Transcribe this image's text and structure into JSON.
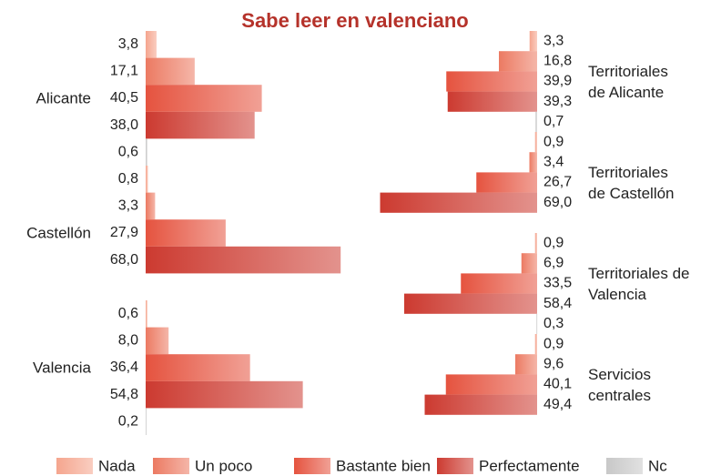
{
  "chart_data": [
    {
      "type": "bar",
      "orientation": "horizontal",
      "title": "Sabe leer en valenciano",
      "categories": [
        "Alicante",
        "Castellón",
        "Valencia"
      ],
      "xlim": [
        0,
        100
      ],
      "series": [
        {
          "name": "Nada",
          "color": "#f5a58e",
          "values": [
            3.8,
            0.8,
            0.6
          ],
          "value_labels": [
            "3,8",
            "0,8",
            "0,6"
          ]
        },
        {
          "name": "Un poco",
          "color": "#ec7a62",
          "values": [
            17.1,
            3.3,
            8.0
          ],
          "value_labels": [
            "17,1",
            "3,3",
            "8,0"
          ]
        },
        {
          "name": "Bastante bien",
          "color": "#e5533f",
          "values": [
            40.5,
            27.9,
            36.4
          ],
          "value_labels": [
            "40,5",
            "27,9",
            "36,4"
          ]
        },
        {
          "name": "Perfectamente",
          "color": "#cc3a30",
          "values": [
            38.0,
            68.0,
            54.8
          ],
          "value_labels": [
            "38,0",
            "68,0",
            "54,8"
          ]
        },
        {
          "name": "Nc",
          "color": "#c8c8c8",
          "values": [
            0.6,
            null,
            0.2
          ],
          "value_labels": [
            "0,6",
            null,
            "0,2"
          ]
        }
      ]
    },
    {
      "type": "bar",
      "orientation": "horizontal-reversed",
      "categories": [
        "Territoriales\nde Alicante",
        "Territoriales\nde Castellón",
        "Territoriales de\nValencia",
        "Servicios\ncentrales"
      ],
      "xlim": [
        0,
        100
      ],
      "series": [
        {
          "color": "#f5a58e",
          "values": [
            3.3,
            0.9,
            0.9,
            0.9
          ],
          "value_labels": [
            "3,3",
            "0,9",
            "0,9",
            "0,9"
          ]
        },
        {
          "color": "#ec7a62",
          "values": [
            16.8,
            3.4,
            6.9,
            9.6
          ],
          "value_labels": [
            "16,8",
            "3,4",
            "6,9",
            "9,6"
          ]
        },
        {
          "color": "#e5533f",
          "values": [
            39.9,
            26.7,
            33.5,
            40.1
          ],
          "value_labels": [
            "39,9",
            "26,7",
            "33,5",
            "40,1"
          ]
        },
        {
          "color": "#cc3a30",
          "values": [
            39.3,
            69.0,
            58.4,
            49.4
          ],
          "value_labels": [
            "39,3",
            "69,0",
            "58,4",
            "49,4"
          ]
        },
        {
          "color": "#c8c8c8",
          "values": [
            0.7,
            null,
            0.3,
            null
          ],
          "value_labels": [
            "0,7",
            null,
            "0,3",
            null
          ]
        }
      ]
    }
  ]
}
